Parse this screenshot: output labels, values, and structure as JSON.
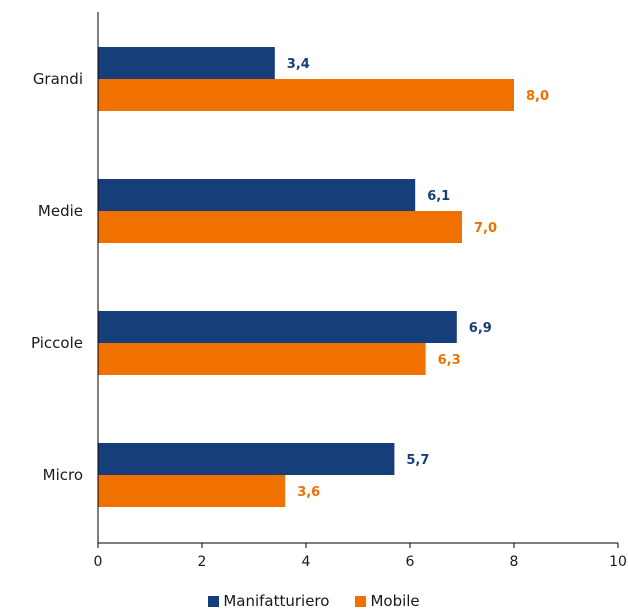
{
  "chart_data": {
    "type": "bar",
    "orientation": "horizontal",
    "categories": [
      "Grandi",
      "Medie",
      "Piccole",
      "Micro"
    ],
    "series": [
      {
        "name": "Manifatturiero",
        "color": "#163e7a",
        "values": [
          3.4,
          6.1,
          6.9,
          5.7
        ],
        "labels": [
          "3,4",
          "6,1",
          "6,9",
          "5,7"
        ]
      },
      {
        "name": "Mobile",
        "color": "#f07000",
        "values": [
          8.0,
          7.0,
          6.3,
          3.6
        ],
        "labels": [
          "8,0",
          "7,0",
          "6,3",
          "3,6"
        ]
      }
    ],
    "xlim": [
      0,
      10
    ],
    "xticks": [
      "0",
      "2",
      "4",
      "6",
      "8",
      "10"
    ],
    "grid": false,
    "legend": "bottom"
  }
}
